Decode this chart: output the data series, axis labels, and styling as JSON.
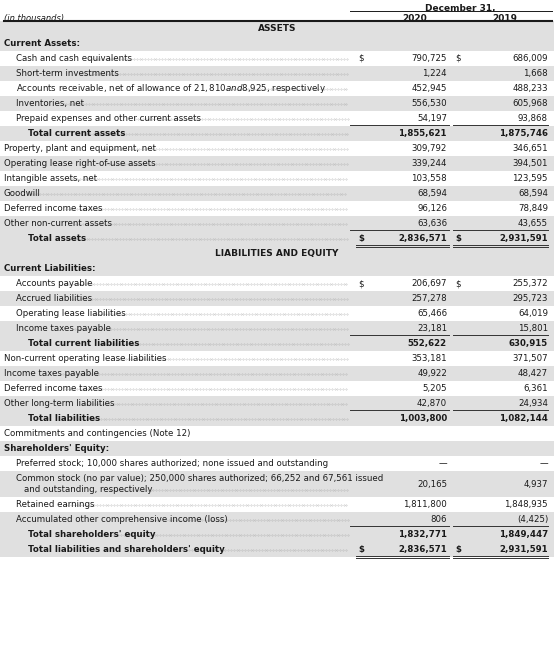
{
  "title_date": "December 31,",
  "subtitle": "(in thousands)",
  "col2020": "2020",
  "col2019": "2019",
  "bg_color": "#ffffff",
  "alt_row_bg": "#e0e0e0",
  "rows": [
    {
      "label": "ASSETS",
      "v2020": "",
      "v2019": "",
      "style": "section_header",
      "indent": 0
    },
    {
      "label": "Current Assets:",
      "v2020": "",
      "v2019": "",
      "style": "category",
      "indent": 0
    },
    {
      "label": "Cash and cash equivalents",
      "v2020": "790,725",
      "v2019": "686,009",
      "style": "item",
      "indent": 1,
      "dollar2020": true,
      "dollar2019": true
    },
    {
      "label": "Short-term investments",
      "v2020": "1,224",
      "v2019": "1,668",
      "style": "item_alt",
      "indent": 1
    },
    {
      "label": "Accounts receivable, net of allowance of $21,810 and $8,925, respectively",
      "v2020": "452,945",
      "v2019": "488,233",
      "style": "item",
      "indent": 1
    },
    {
      "label": "Inventories, net",
      "v2020": "556,530",
      "v2019": "605,968",
      "style": "item_alt",
      "indent": 1
    },
    {
      "label": "Prepaid expenses and other current assets",
      "v2020": "54,197",
      "v2019": "93,868",
      "style": "item",
      "indent": 1,
      "bottom_line": true
    },
    {
      "label": "Total current assets",
      "v2020": "1,855,621",
      "v2019": "1,875,746",
      "style": "total",
      "indent": 2
    },
    {
      "label": "Property, plant and equipment, net",
      "v2020": "309,792",
      "v2019": "346,651",
      "style": "item",
      "indent": 0
    },
    {
      "label": "Operating lease right-of-use assets",
      "v2020": "339,244",
      "v2019": "394,501",
      "style": "item_alt",
      "indent": 0
    },
    {
      "label": "Intangible assets, net",
      "v2020": "103,558",
      "v2019": "123,595",
      "style": "item",
      "indent": 0
    },
    {
      "label": "Goodwill",
      "v2020": "68,594",
      "v2019": "68,594",
      "style": "item_alt",
      "indent": 0
    },
    {
      "label": "Deferred income taxes",
      "v2020": "96,126",
      "v2019": "78,849",
      "style": "item",
      "indent": 0
    },
    {
      "label": "Other non-current assets",
      "v2020": "63,636",
      "v2019": "43,655",
      "style": "item_alt",
      "indent": 0,
      "bottom_line": true
    },
    {
      "label": "Total assets",
      "v2020": "2,836,571",
      "v2019": "2,931,591",
      "style": "total",
      "indent": 2,
      "double_line": true,
      "dollar2020": true,
      "dollar2019": true
    },
    {
      "label": "LIABILITIES AND EQUITY",
      "v2020": "",
      "v2019": "",
      "style": "section_header",
      "indent": 0
    },
    {
      "label": "Current Liabilities:",
      "v2020": "",
      "v2019": "",
      "style": "category",
      "indent": 0
    },
    {
      "label": "Accounts payable",
      "v2020": "206,697",
      "v2019": "255,372",
      "style": "item",
      "indent": 1,
      "dollar2020": true,
      "dollar2019": true
    },
    {
      "label": "Accrued liabilities",
      "v2020": "257,278",
      "v2019": "295,723",
      "style": "item_alt",
      "indent": 1
    },
    {
      "label": "Operating lease liabilities",
      "v2020": "65,466",
      "v2019": "64,019",
      "style": "item",
      "indent": 1
    },
    {
      "label": "Income taxes payable",
      "v2020": "23,181",
      "v2019": "15,801",
      "style": "item_alt",
      "indent": 1,
      "bottom_line": true
    },
    {
      "label": "Total current liabilities",
      "v2020": "552,622",
      "v2019": "630,915",
      "style": "total",
      "indent": 2
    },
    {
      "label": "Non-current operating lease liabilities",
      "v2020": "353,181",
      "v2019": "371,507",
      "style": "item",
      "indent": 0
    },
    {
      "label": "Income taxes payable",
      "v2020": "49,922",
      "v2019": "48,427",
      "style": "item_alt",
      "indent": 0
    },
    {
      "label": "Deferred income taxes",
      "v2020": "5,205",
      "v2019": "6,361",
      "style": "item",
      "indent": 0
    },
    {
      "label": "Other long-term liabilities",
      "v2020": "42,870",
      "v2019": "24,934",
      "style": "item_alt",
      "indent": 0,
      "bottom_line": true
    },
    {
      "label": "Total liabilities",
      "v2020": "1,003,800",
      "v2019": "1,082,144",
      "style": "total",
      "indent": 2
    },
    {
      "label": "Commitments and contingencies (Note 12)",
      "v2020": "",
      "v2019": "",
      "style": "plain",
      "indent": 0
    },
    {
      "label": "Shareholders' Equity:",
      "v2020": "",
      "v2019": "",
      "style": "category",
      "indent": 0
    },
    {
      "label": "Preferred stock; 10,000 shares authorized; none issued and outstanding",
      "v2020": "—",
      "v2019": "—",
      "style": "item",
      "indent": 1,
      "no_dots": true
    },
    {
      "label": "Common stock (no par value); 250,000 shares authorized; 66,252 and 67,561 issued",
      "label2": "    and outstanding, respectively",
      "v2020": "20,165",
      "v2019": "4,937",
      "style": "item_alt",
      "indent": 1,
      "multiline": true
    },
    {
      "label": "Retained earnings",
      "v2020": "1,811,800",
      "v2019": "1,848,935",
      "style": "item",
      "indent": 1
    },
    {
      "label": "Accumulated other comprehensive income (loss)",
      "v2020": "806",
      "v2019": "(4,425)",
      "style": "item_alt",
      "indent": 1,
      "bottom_line": true
    },
    {
      "label": "Total shareholders' equity",
      "v2020": "1,832,771",
      "v2019": "1,849,447",
      "style": "total",
      "indent": 2
    },
    {
      "label": "Total liabilities and shareholders' equity",
      "v2020": "2,836,571",
      "v2019": "2,931,591",
      "style": "total",
      "indent": 2,
      "double_line": true,
      "dollar2020": true,
      "dollar2019": true
    }
  ]
}
